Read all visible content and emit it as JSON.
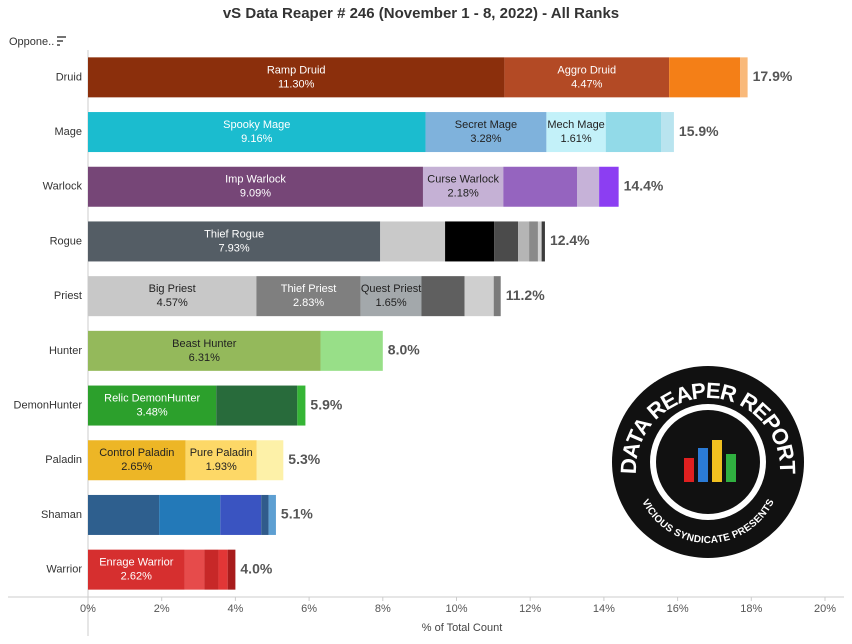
{
  "chart_data": {
    "type": "stacked-hbar",
    "title": "vS Data Reaper # 246 (November 1 - 8, 2022) - All Ranks",
    "row_header": "Oppone..",
    "xlabel": "% of Total Count",
    "xlim": [
      0,
      20
    ],
    "xticks": [
      {
        "value": 0,
        "label": "0%"
      },
      {
        "value": 2,
        "label": "2%"
      },
      {
        "value": 4,
        "label": "4%"
      },
      {
        "value": 6,
        "label": "6%"
      },
      {
        "value": 8,
        "label": "8%"
      },
      {
        "value": 10,
        "label": "10%"
      },
      {
        "value": 12,
        "label": "12%"
      },
      {
        "value": 14,
        "label": "14%"
      },
      {
        "value": 16,
        "label": "16%"
      },
      {
        "value": 18,
        "label": "18%"
      },
      {
        "value": 20,
        "label": "20%"
      }
    ],
    "rows": [
      {
        "category": "Druid",
        "total": 17.9,
        "total_label": "17.9%",
        "segments": [
          {
            "name": "Ramp Druid",
            "value": 11.3,
            "value_label": "11.30%",
            "color": "#8b2f0c"
          },
          {
            "name": "Aggro Druid",
            "value": 4.47,
            "value_label": "4.47%",
            "color": "#b34a25"
          },
          {
            "value": 1.93,
            "color": "#f47f17"
          },
          {
            "value": 0.2,
            "color": "#f9b97a"
          }
        ]
      },
      {
        "category": "Mage",
        "total": 15.9,
        "total_label": "15.9%",
        "segments": [
          {
            "name": "Spooky Mage",
            "value": 9.16,
            "value_label": "9.16%",
            "color": "#1bbccf"
          },
          {
            "name": "Secret Mage",
            "value": 3.28,
            "value_label": "3.28%",
            "color": "#7fb2dc"
          },
          {
            "name": "Mech Mage",
            "value": 1.61,
            "value_label": "1.61%",
            "color": "#c3f1f9"
          },
          {
            "value": 1.5,
            "color": "#92dae8"
          },
          {
            "value": 0.35,
            "color": "#b9e4ef"
          }
        ]
      },
      {
        "category": "Warlock",
        "total": 14.4,
        "total_label": "14.4%",
        "segments": [
          {
            "name": "Imp Warlock",
            "value": 9.09,
            "value_label": "9.09%",
            "color": "#764677"
          },
          {
            "name": "Curse Warlock",
            "value": 2.18,
            "value_label": "2.18%",
            "color": "#c5b1d5"
          },
          {
            "value": 2.0,
            "color": "#9564bf"
          },
          {
            "value": 0.6,
            "color": "#c6b2d8"
          },
          {
            "value": 0.53,
            "color": "#8c3ef2"
          }
        ]
      },
      {
        "category": "Rogue",
        "total": 12.4,
        "total_label": "12.4%",
        "segments": [
          {
            "name": "Thief Rogue",
            "value": 7.93,
            "value_label": "7.93%",
            "color": "#545d65"
          },
          {
            "value": 1.76,
            "color": "#c9c9c9"
          },
          {
            "value": 1.33,
            "color": "#000000"
          },
          {
            "value": 0.65,
            "color": "#4b4b4b"
          },
          {
            "value": 0.3,
            "color": "#b5b5b5"
          },
          {
            "value": 0.24,
            "color": "#8a8a8a"
          },
          {
            "value": 0.1,
            "color": "#d3d3d3"
          },
          {
            "value": 0.09,
            "color": "#3c3c3c"
          }
        ]
      },
      {
        "category": "Priest",
        "total": 11.2,
        "total_label": "11.2%",
        "segments": [
          {
            "name": "Big Priest",
            "value": 4.57,
            "value_label": "4.57%",
            "color": "#c8c8c8"
          },
          {
            "name": "Thief Priest",
            "value": 2.83,
            "value_label": "2.83%",
            "color": "#7f7f7f"
          },
          {
            "name": "Quest Priest",
            "value": 1.65,
            "value_label": "1.65%",
            "color": "#a3a8ab"
          },
          {
            "value": 1.17,
            "color": "#5f5f5f"
          },
          {
            "value": 0.79,
            "color": "#cfcfcf"
          },
          {
            "value": 0.19,
            "color": "#7b7b7b"
          }
        ]
      },
      {
        "category": "Hunter",
        "total": 8.0,
        "total_label": "8.0%",
        "segments": [
          {
            "name": "Beast Hunter",
            "value": 6.31,
            "value_label": "6.31%",
            "color": "#94b95b"
          },
          {
            "value": 1.69,
            "color": "#98df88"
          }
        ]
      },
      {
        "category": "DemonHunter",
        "total": 5.9,
        "total_label": "5.9%",
        "segments": [
          {
            "name": "Relic DemonHunter",
            "value": 3.48,
            "value_label": "3.48%",
            "color": "#2ca02c"
          },
          {
            "value": 2.2,
            "color": "#286b3b"
          },
          {
            "value": 0.22,
            "color": "#35b535"
          }
        ]
      },
      {
        "category": "Paladin",
        "total": 5.3,
        "total_label": "5.3%",
        "segments": [
          {
            "name": "Control Paladin",
            "value": 2.65,
            "value_label": "2.65%",
            "color": "#edb626"
          },
          {
            "name": "Pure Paladin",
            "value": 1.93,
            "value_label": "1.93%",
            "color": "#fdd867"
          },
          {
            "value": 0.72,
            "color": "#fdf1a8"
          }
        ]
      },
      {
        "category": "Shaman",
        "total": 5.1,
        "total_label": "5.1%",
        "segments": [
          {
            "value": 1.93,
            "color": "#2e5f8e"
          },
          {
            "value": 1.66,
            "color": "#2379b8"
          },
          {
            "value": 1.11,
            "color": "#3a54c1"
          },
          {
            "value": 0.2,
            "color": "#305b8b"
          },
          {
            "value": 0.2,
            "color": "#5d9fd2"
          }
        ]
      },
      {
        "category": "Warrior",
        "total": 4.0,
        "total_label": "4.0%",
        "segments": [
          {
            "name": "Enrage Warrior",
            "value": 2.62,
            "value_label": "2.62%",
            "color": "#d62f2f"
          },
          {
            "value": 0.54,
            "color": "#e64b4b"
          },
          {
            "value": 0.38,
            "color": "#c72828"
          },
          {
            "value": 0.25,
            "color": "#e23636"
          },
          {
            "value": 0.21,
            "color": "#a81c1c"
          }
        ]
      }
    ]
  },
  "logo": {
    "title": "DATA REAPER REPORT",
    "subtitle": "VICIOUS SYNDICATE PRESENTS"
  }
}
